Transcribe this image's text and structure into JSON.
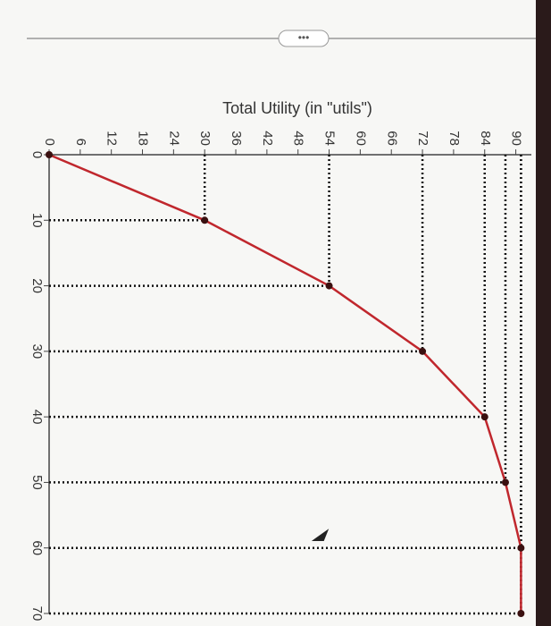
{
  "chart_data": {
    "type": "line",
    "title": "Total Utility (in \"utils\")",
    "x": [
      0,
      10,
      20,
      30,
      40,
      50,
      60,
      70
    ],
    "xlim": [
      0,
      70
    ],
    "xticks": [
      0,
      10,
      20,
      30,
      40,
      50,
      60,
      70
    ],
    "series": [
      {
        "name": "Total Utility",
        "color": "#c0272d",
        "values": [
          0,
          30,
          54,
          72,
          84,
          88,
          91,
          91
        ]
      }
    ],
    "ylim": [
      0,
      93
    ],
    "yticks": [
      0,
      6,
      12,
      18,
      24,
      30,
      36,
      42,
      48,
      54,
      60,
      66,
      72,
      78,
      84,
      90
    ]
  }
}
